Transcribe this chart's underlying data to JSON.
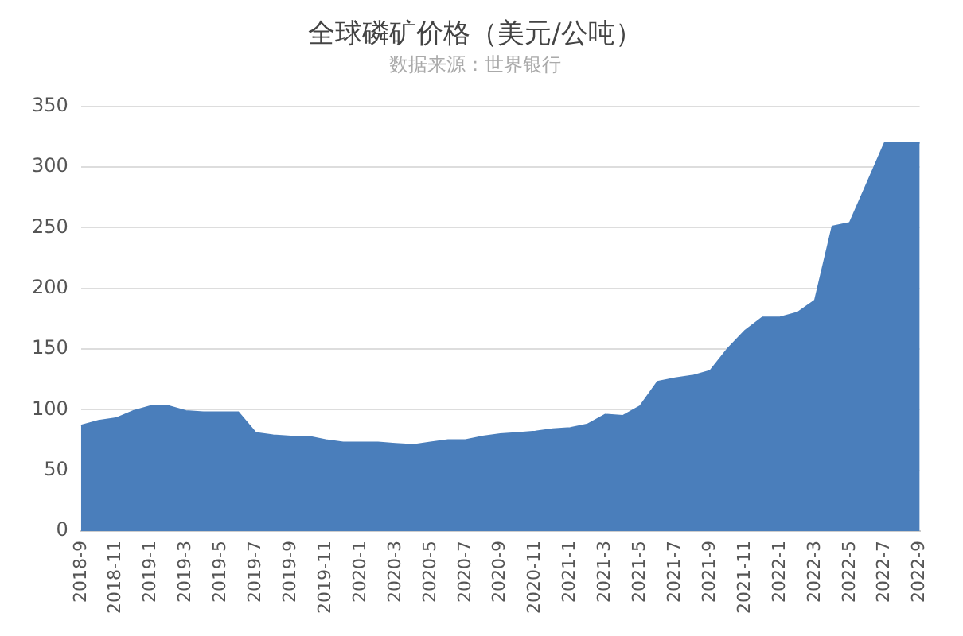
{
  "chart_data": {
    "type": "area",
    "title": "全球磷矿价格（美元/公吨）",
    "subtitle": "数据来源：世界银行",
    "categories": [
      "2018-9",
      null,
      "2018-11",
      null,
      "2019-1",
      null,
      "2019-3",
      null,
      "2019-5",
      null,
      "2019-7",
      null,
      "2019-9",
      null,
      "2019-11",
      null,
      "2020-1",
      null,
      "2020-3",
      null,
      "2020-5",
      null,
      "2020-7",
      null,
      "2020-9",
      null,
      "2020-11",
      null,
      "2021-1",
      null,
      "2021-3",
      null,
      "2021-5",
      null,
      "2021-7",
      null,
      "2021-9",
      null,
      "2021-11",
      null,
      "2022-1",
      null,
      "2022-3",
      null,
      "2022-5",
      null,
      "2022-7",
      null,
      "2022-9"
    ],
    "series": [
      {
        "color": "#4a7ebb",
        "values": [
          87,
          91,
          93,
          99,
          103,
          103,
          99,
          98,
          98,
          98,
          81,
          79,
          78,
          78,
          75,
          73,
          73,
          73,
          72,
          71,
          73,
          75,
          75,
          78,
          80,
          81,
          82,
          84,
          85,
          88,
          96,
          95,
          103,
          123,
          126,
          128,
          132,
          150,
          165,
          176,
          176,
          180,
          190,
          251,
          254,
          287,
          320,
          320,
          320
        ]
      }
    ],
    "ylim": [
      0,
      350
    ],
    "yticks": [
      0,
      50,
      100,
      150,
      200,
      250,
      300,
      350
    ],
    "grid": "y",
    "legend": false
  }
}
